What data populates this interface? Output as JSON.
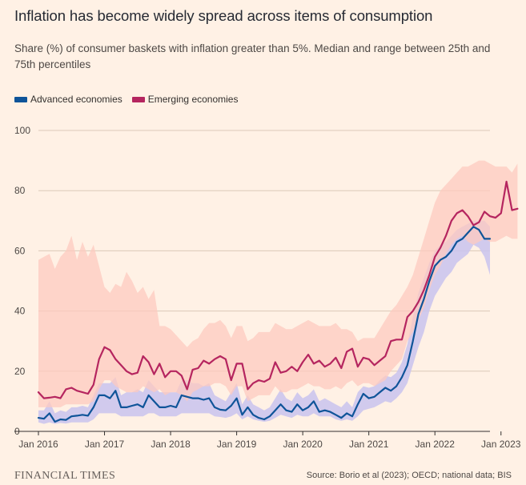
{
  "header": {
    "title": "Inflation has become widely spread across items of consumption",
    "subtitle": "Share (%) of consumer baskets with inflation greater than 5%. Median and range between 25th and 75th percentiles"
  },
  "footer": {
    "brand": "FINANCIAL TIMES",
    "source": "Source: Borio et al (2023); OECD; national data; BIS"
  },
  "chart_data": {
    "type": "line",
    "title": "Inflation has become widely spread across items of consumption",
    "ylim": [
      0,
      100
    ],
    "xlim": [
      "2016-01",
      "2023-03"
    ],
    "y_ticks": [
      0,
      20,
      40,
      60,
      80,
      100
    ],
    "x_ticks": [
      "Jan 2016",
      "Jan 2017",
      "Jan 2018",
      "Jan 2019",
      "Jan 2020",
      "Jan 2021",
      "Jan 2022",
      "Jan 2023"
    ],
    "grid": "horizontal",
    "legend": "top-left",
    "start_month": "2016-01",
    "series": [
      {
        "name": "Advanced economies",
        "color": "#0f5499",
        "band_color": "#c9c3ef",
        "median": [
          4.5,
          4.2,
          6,
          3.2,
          4,
          3.8,
          5,
          5.2,
          5.5,
          5.2,
          8,
          12,
          12,
          11,
          13.5,
          8,
          8,
          8.5,
          9,
          8,
          12,
          10,
          8,
          8,
          8.5,
          8,
          12,
          11.5,
          11,
          11,
          10.5,
          11,
          8,
          7.2,
          7,
          8.5,
          11,
          5.5,
          8,
          5.5,
          4.5,
          4,
          5,
          7,
          9,
          7,
          6.5,
          9,
          7,
          8,
          10,
          6.5,
          7,
          6.5,
          5.5,
          4.5,
          6,
          5,
          9,
          12.5,
          11,
          11.5,
          13,
          14.5,
          13.5,
          15,
          18,
          22,
          30,
          39,
          44,
          50,
          55,
          57,
          58,
          60,
          63,
          64,
          66,
          68,
          67,
          64,
          64
        ],
        "p25": [
          3,
          2.5,
          3,
          2.5,
          2.8,
          2.6,
          3,
          3,
          3,
          3,
          4,
          6,
          6,
          6,
          6,
          5,
          5,
          5,
          5,
          5,
          6,
          6,
          5,
          5,
          5,
          5,
          6,
          6,
          6,
          6,
          6,
          6,
          5,
          4.8,
          4.5,
          5,
          6,
          4,
          5,
          4,
          3.5,
          3.2,
          3.5,
          4.5,
          5.5,
          5,
          4.5,
          5.5,
          5,
          5,
          6,
          5,
          5,
          5,
          4,
          3.5,
          4,
          3.5,
          5,
          7,
          7.5,
          8,
          9,
          10,
          9.5,
          11,
          13,
          16,
          22,
          28,
          33,
          40,
          45,
          48,
          51,
          53,
          56,
          57.5,
          59,
          62,
          61,
          58,
          52
        ],
        "p75": [
          7,
          7,
          10,
          6,
          7,
          6.5,
          8,
          8,
          8.5,
          8,
          12,
          16,
          16,
          16,
          18,
          12,
          13,
          13,
          14,
          13,
          17,
          15,
          13,
          13,
          13,
          13,
          17,
          17,
          16,
          16,
          15,
          16,
          12,
          11,
          10,
          13,
          16,
          9,
          12,
          9,
          8,
          7,
          8,
          11,
          14,
          11,
          10,
          13,
          11,
          12,
          14,
          10,
          11,
          10,
          9,
          8,
          10,
          8,
          13,
          15,
          14.5,
          15,
          17,
          18.5,
          18,
          19.5,
          23,
          29,
          38,
          46,
          51,
          56,
          60,
          62,
          63,
          65,
          67,
          68,
          69,
          70,
          70,
          70,
          68
        ]
      },
      {
        "name": "Emerging economies",
        "color": "#b5255f",
        "band_color": "#fdc9bf",
        "median": [
          13,
          11,
          11.2,
          11.5,
          11,
          14,
          14.5,
          13.5,
          13,
          12.5,
          15.5,
          24,
          28,
          27,
          24,
          22,
          20,
          19,
          19.5,
          25,
          23,
          19,
          22.5,
          18,
          20,
          20,
          18.5,
          14,
          20.5,
          21,
          23.5,
          22.5,
          24,
          25,
          24,
          17,
          22.5,
          22.5,
          14,
          16,
          17,
          16.5,
          17.5,
          23,
          19.5,
          20,
          21.5,
          20,
          23,
          25.5,
          22.5,
          23.5,
          21.5,
          22.5,
          24.5,
          21,
          26.5,
          27.5,
          21.5,
          24.5,
          24,
          22,
          23.5,
          25,
          30,
          30.5,
          30.5,
          38,
          40,
          43,
          47,
          52,
          58,
          61,
          65,
          70,
          72.5,
          73.5,
          71.5,
          68.5,
          69.5,
          73,
          71.5,
          71,
          72.5,
          83,
          73.5,
          74
        ],
        "p25": [
          8,
          8,
          8,
          8,
          8,
          9,
          9,
          9,
          9,
          9,
          10,
          14,
          17,
          17,
          15,
          14,
          13,
          13,
          13,
          15,
          14,
          13,
          14,
          12,
          13,
          13,
          12,
          10,
          13,
          14,
          15,
          15,
          16,
          16,
          15,
          12,
          15,
          15,
          10,
          11,
          12,
          12,
          12,
          15,
          13,
          13,
          14,
          14,
          15,
          16,
          15,
          15,
          14,
          14,
          15,
          14,
          16,
          17,
          15,
          16,
          16,
          15,
          16,
          17,
          20,
          22,
          24,
          30,
          33,
          37,
          41,
          47,
          52,
          55,
          59,
          62,
          64,
          65,
          63,
          62,
          63,
          64,
          63,
          63,
          64,
          65,
          64,
          64
        ],
        "p75": [
          57,
          58,
          59,
          54,
          58,
          60,
          65,
          57,
          63,
          58,
          62,
          55,
          48,
          46,
          49,
          48,
          53,
          50,
          46,
          48,
          44,
          47,
          35,
          35,
          34,
          32,
          30,
          28,
          30,
          31,
          34,
          36,
          36,
          37,
          35,
          31,
          35,
          35,
          30,
          31,
          33,
          33,
          33,
          36,
          35,
          34,
          34,
          35,
          36,
          37,
          36,
          35,
          35,
          35,
          36,
          34,
          34,
          33,
          30,
          31,
          31,
          31,
          34,
          37,
          40,
          42,
          45,
          48,
          52,
          58,
          64,
          70,
          76,
          80,
          82,
          84,
          86,
          88,
          88,
          89,
          90,
          90,
          89,
          88,
          88,
          88,
          86,
          89
        ]
      }
    ]
  }
}
